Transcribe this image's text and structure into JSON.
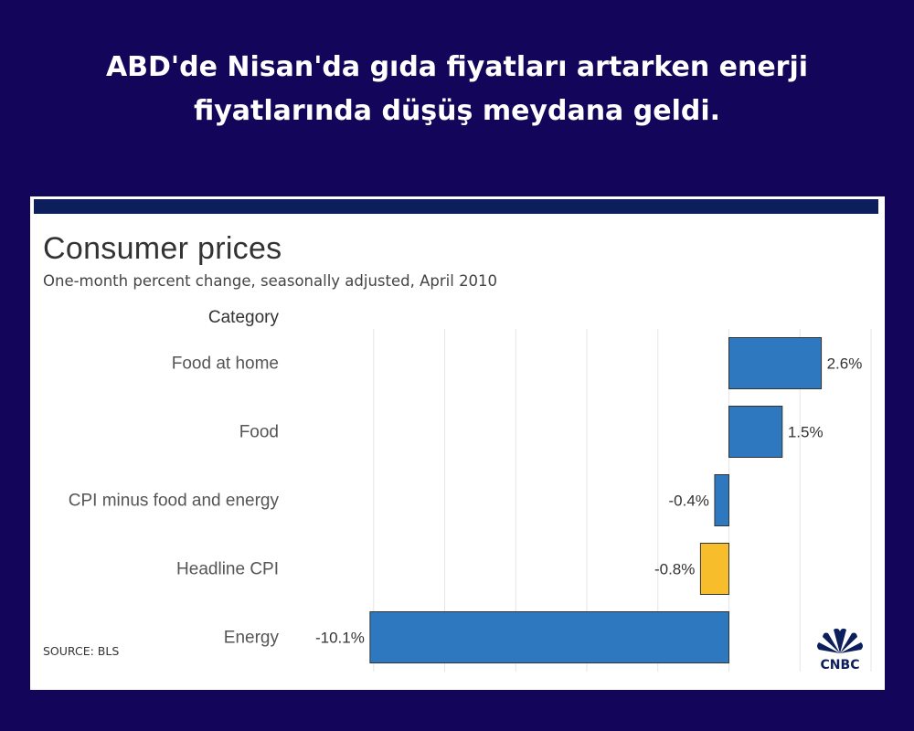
{
  "headline": "ABD'de Nisan'da gıda fiyatları artarken enerji fiyatlarında düşüş meydana geldi.",
  "chart_data": {
    "type": "bar",
    "orientation": "horizontal",
    "title": "Consumer prices",
    "subtitle": "One-month percent change, seasonally adjusted, April 2010",
    "category_axis_label": "Category",
    "categories": [
      "Food at home",
      "Food",
      "CPI minus food and energy",
      "Headline CPI",
      "Energy"
    ],
    "values": [
      2.6,
      1.5,
      -0.4,
      -0.8,
      -10.1
    ],
    "value_labels": [
      "2.6%",
      "1.5%",
      "-0.4%",
      "-0.8%",
      "-10.1%"
    ],
    "bar_colors": [
      "#2e78bf",
      "#2e78bf",
      "#2e78bf",
      "#f7bd2b",
      "#2e78bf"
    ],
    "xlim": [
      -12,
      4
    ],
    "grid": true,
    "source": "SOURCE: BLS"
  },
  "logo": {
    "name": "cnbc-logo",
    "text": "CNBC"
  },
  "colors": {
    "background": "#13065a",
    "card": "#ffffff",
    "topbar": "#0c1f5c",
    "bar": "#2e78bf",
    "highlight": "#f7bd2b"
  }
}
